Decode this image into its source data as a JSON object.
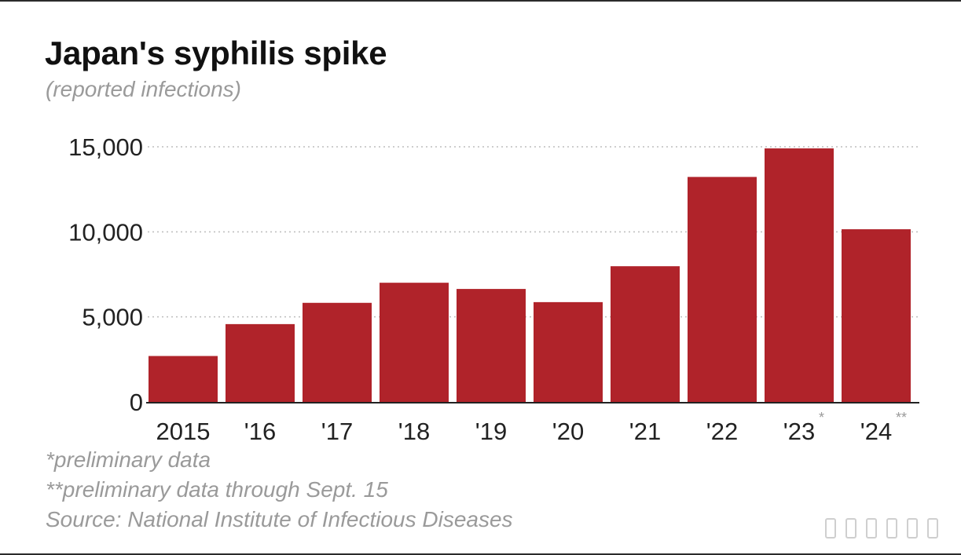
{
  "title": "Japan's syphilis spike",
  "subtitle": "(reported infections)",
  "notes": {
    "note1": "*preliminary data",
    "note2": "**preliminary data through Sept. 15",
    "source": "Source: National Institute of Infectious Diseases"
  },
  "colors": {
    "bar": "#b0232a",
    "grid": "#bdbdbd",
    "axis": "#222222",
    "tick_text": "#222222"
  },
  "chart_data": {
    "type": "bar",
    "title": "Japan's syphilis spike",
    "subtitle": "(reported infections)",
    "categories": [
      "2015",
      "'16",
      "'17",
      "'18",
      "'19",
      "'20",
      "'21",
      "'22",
      "'23",
      "'24"
    ],
    "category_marks": [
      "",
      "",
      "",
      "",
      "",
      "",
      "",
      "",
      "*",
      "**"
    ],
    "values": [
      2700,
      4575,
      5826,
      7007,
      6642,
      5867,
      7978,
      13228,
      14906,
      10152
    ],
    "yticks": [
      0,
      5000,
      10000,
      15000
    ],
    "ytick_labels": [
      "0",
      "5,000",
      "10,000",
      "15,000"
    ],
    "ylim": [
      0,
      15000
    ],
    "xlabel": "",
    "ylabel": "",
    "grid": true
  }
}
